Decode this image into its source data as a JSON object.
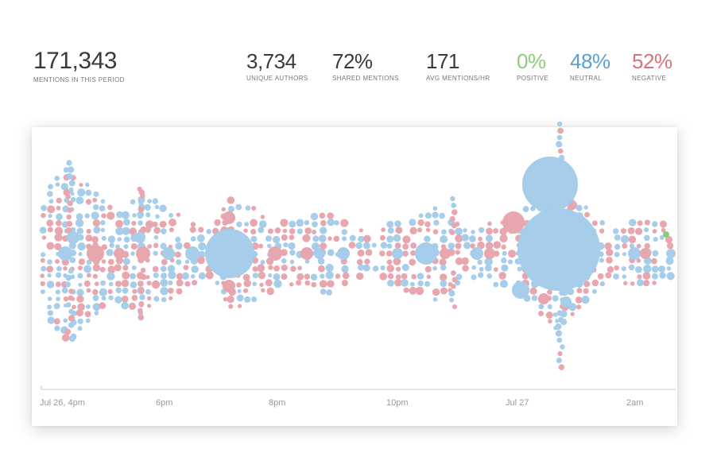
{
  "summary": {
    "mentions": {
      "value": "171,343",
      "label": "MENTIONS IN THIS PERIOD"
    },
    "unique_authors": {
      "value": "3,734",
      "label": "UNIQUE AUTHORS"
    },
    "shared_mentions": {
      "value": "72%",
      "label": "SHARED MENTIONS"
    },
    "avg_mentions_hr": {
      "value": "171",
      "label": "AVG MENTIONS/HR"
    },
    "positive": {
      "value": "0%",
      "label": "POSITIVE"
    },
    "neutral": {
      "value": "48%",
      "label": "NEUTRAL"
    },
    "negative": {
      "value": "52%",
      "label": "NEGATIVE"
    }
  },
  "colors": {
    "positive": "#8dcc7a",
    "neutral": "#a6cdea",
    "negative": "#e8a6ae",
    "text": "#3a3a3a",
    "axis": "#c8c8c8"
  },
  "chart_data": {
    "type": "scatter",
    "encoding": "packed bubble timeline; bubble area = mentions; color = sentiment",
    "x_ticks": [
      "Jul 26, 4pm",
      "6pm",
      "8pm",
      "10pm",
      "Jul 27",
      "2am"
    ],
    "sentiment_shares": {
      "positive": 0,
      "neutral": 48,
      "negative": 52
    }
  }
}
